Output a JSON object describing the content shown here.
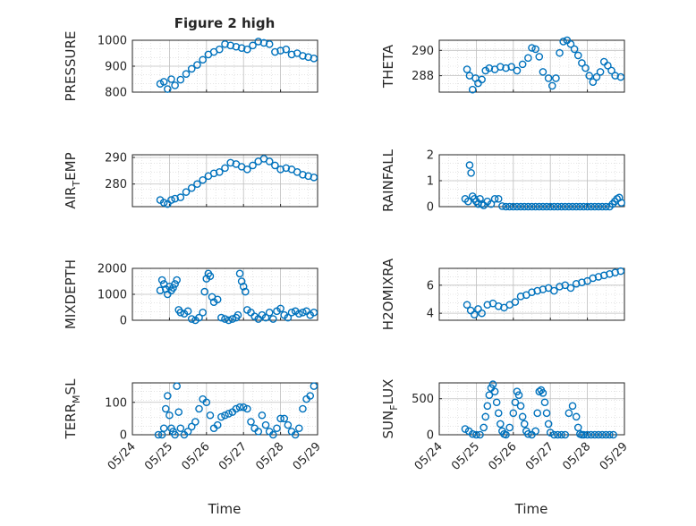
{
  "figure": {
    "title": "Figure 2 high",
    "xlabel": "Time"
  },
  "colors": {
    "series": "#0072bd",
    "axes": "#262626",
    "grid": "#bfbfbf"
  },
  "chart_data": [
    {
      "type": "scatter",
      "title": "Figure 2 high",
      "ylabel": {
        "text": "PRESSURE"
      },
      "ylim": [
        800,
        1000
      ],
      "yticks": [
        800,
        900,
        1000
      ],
      "xlim": [
        0,
        5
      ],
      "xticks": [],
      "grid": true,
      "x": [
        0.75,
        0.85,
        0.95,
        1.05,
        1.15,
        1.3,
        1.45,
        1.6,
        1.75,
        1.9,
        2.05,
        2.2,
        2.35,
        2.5,
        2.65,
        2.8,
        2.95,
        3.1,
        3.25,
        3.4,
        3.55,
        3.7,
        3.85,
        4.0,
        4.15,
        4.3,
        4.45,
        4.6,
        4.75,
        4.9
      ],
      "y": [
        832,
        840,
        812,
        850,
        826,
        848,
        870,
        890,
        905,
        925,
        945,
        955,
        965,
        985,
        980,
        975,
        970,
        965,
        980,
        995,
        990,
        985,
        955,
        960,
        965,
        945,
        950,
        940,
        935,
        930
      ]
    },
    {
      "type": "scatter",
      "ylabel": {
        "text": "THETA"
      },
      "ylim": [
        286.7,
        290.8
      ],
      "yticks": [
        288,
        290
      ],
      "xlim": [
        0,
        5
      ],
      "xticks": [],
      "grid": true,
      "x": [
        0.75,
        0.82,
        0.9,
        0.98,
        1.05,
        1.15,
        1.25,
        1.35,
        1.5,
        1.65,
        1.8,
        1.95,
        2.1,
        2.25,
        2.4,
        2.5,
        2.6,
        2.7,
        2.8,
        2.95,
        3.05,
        3.15,
        3.25,
        3.35,
        3.45,
        3.55,
        3.65,
        3.75,
        3.85,
        3.95,
        4.05,
        4.15,
        4.25,
        4.35,
        4.45,
        4.55,
        4.65,
        4.75,
        4.9
      ],
      "y": [
        288.5,
        288.0,
        286.9,
        287.8,
        287.4,
        287.7,
        288.4,
        288.6,
        288.5,
        288.7,
        288.6,
        288.7,
        288.4,
        288.9,
        289.4,
        290.2,
        290.1,
        289.5,
        288.3,
        287.8,
        287.2,
        287.8,
        289.8,
        290.7,
        290.8,
        290.5,
        290.1,
        289.6,
        289.0,
        288.6,
        288.0,
        287.5,
        287.9,
        288.3,
        289.1,
        288.8,
        288.4,
        288.0,
        287.9
      ]
    },
    {
      "type": "scatter",
      "ylabel": {
        "text": "AIR",
        "sub": "T",
        "after": "EMP"
      },
      "ylim": [
        271.5,
        291
      ],
      "yticks": [
        280,
        290
      ],
      "xlim": [
        0,
        5
      ],
      "xticks": [],
      "grid": true,
      "x": [
        0.75,
        0.85,
        0.95,
        1.05,
        1.15,
        1.3,
        1.45,
        1.6,
        1.75,
        1.9,
        2.05,
        2.2,
        2.35,
        2.5,
        2.65,
        2.8,
        2.95,
        3.1,
        3.25,
        3.4,
        3.55,
        3.7,
        3.85,
        4.0,
        4.15,
        4.3,
        4.45,
        4.6,
        4.75,
        4.9
      ],
      "y": [
        274,
        273,
        272.5,
        274,
        274.5,
        275,
        277,
        278.5,
        280,
        281.5,
        283,
        284,
        284.5,
        286,
        288,
        287.5,
        286.5,
        285.5,
        287,
        288.5,
        289.5,
        288.5,
        287,
        285.5,
        286,
        285.5,
        284.5,
        283.5,
        283,
        282.5
      ]
    },
    {
      "type": "scatter",
      "ylabel": {
        "text": "RAINFALL"
      },
      "ylim": [
        0,
        2
      ],
      "yticks": [
        0,
        1,
        2
      ],
      "xlim": [
        0,
        5
      ],
      "xticks": [],
      "grid": true,
      "x": [
        0.7,
        0.78,
        0.82,
        0.86,
        0.9,
        0.95,
        1.0,
        1.05,
        1.1,
        1.15,
        1.2,
        1.3,
        1.4,
        1.5,
        1.6,
        1.7,
        1.8,
        1.9,
        2.0,
        2.1,
        2.2,
        2.3,
        2.4,
        2.5,
        2.6,
        2.7,
        2.8,
        2.9,
        3.0,
        3.1,
        3.2,
        3.3,
        3.4,
        3.5,
        3.6,
        3.7,
        3.8,
        3.9,
        4.0,
        4.1,
        4.2,
        4.3,
        4.4,
        4.5,
        4.6,
        4.68,
        4.74,
        4.8,
        4.86,
        4.92
      ],
      "y": [
        0.3,
        0.2,
        1.6,
        1.3,
        0.4,
        0.3,
        0.2,
        0.1,
        0.3,
        0.1,
        0.05,
        0.2,
        0.1,
        0.3,
        0.3,
        0.02,
        0,
        0,
        0,
        0,
        0,
        0,
        0,
        0,
        0,
        0,
        0,
        0,
        0,
        0,
        0,
        0,
        0,
        0,
        0,
        0,
        0,
        0,
        0,
        0,
        0,
        0,
        0,
        0,
        0,
        0.1,
        0.2,
        0.3,
        0.35,
        0.15
      ]
    },
    {
      "type": "scatter",
      "ylabel": {
        "text": "MIXDEPTH"
      },
      "ylim": [
        0,
        2000
      ],
      "yticks": [
        0,
        1000,
        2000
      ],
      "xlim": [
        0,
        5
      ],
      "xticks": [],
      "grid": true,
      "x": [
        0.75,
        0.8,
        0.85,
        0.9,
        0.95,
        1.0,
        1.05,
        1.1,
        1.15,
        1.2,
        1.25,
        1.3,
        1.4,
        1.5,
        1.6,
        1.7,
        1.8,
        1.9,
        1.95,
        2.0,
        2.05,
        2.1,
        2.15,
        2.2,
        2.3,
        2.4,
        2.5,
        2.6,
        2.7,
        2.8,
        2.85,
        2.9,
        2.95,
        3.0,
        3.05,
        3.1,
        3.2,
        3.3,
        3.4,
        3.5,
        3.6,
        3.7,
        3.8,
        3.9,
        4.0,
        4.1,
        4.2,
        4.3,
        4.4,
        4.5,
        4.6,
        4.7,
        4.8,
        4.9
      ],
      "y": [
        1150,
        1550,
        1400,
        1200,
        1000,
        1300,
        1150,
        1250,
        1400,
        1550,
        400,
        300,
        250,
        350,
        50,
        0,
        100,
        300,
        1100,
        1600,
        1800,
        1700,
        900,
        700,
        800,
        100,
        50,
        0,
        50,
        100,
        200,
        1800,
        1500,
        1300,
        1100,
        400,
        300,
        150,
        50,
        200,
        100,
        300,
        50,
        350,
        450,
        200,
        100,
        300,
        350,
        250,
        300,
        350,
        200,
        300
      ]
    },
    {
      "type": "scatter",
      "ylabel": {
        "text": "H2OMIXRA"
      },
      "ylim": [
        3.5,
        7.2
      ],
      "yticks": [
        4,
        6
      ],
      "xlim": [
        0,
        5
      ],
      "xticks": [],
      "grid": true,
      "x": [
        0.75,
        0.85,
        0.95,
        1.05,
        1.15,
        1.3,
        1.45,
        1.6,
        1.75,
        1.9,
        2.05,
        2.2,
        2.35,
        2.5,
        2.65,
        2.8,
        2.95,
        3.1,
        3.25,
        3.4,
        3.55,
        3.7,
        3.85,
        4.0,
        4.15,
        4.3,
        4.45,
        4.6,
        4.75,
        4.9
      ],
      "y": [
        4.6,
        4.2,
        3.9,
        4.3,
        4.0,
        4.6,
        4.7,
        4.5,
        4.4,
        4.6,
        4.8,
        5.2,
        5.3,
        5.5,
        5.6,
        5.7,
        5.8,
        5.6,
        5.9,
        6.0,
        5.8,
        6.1,
        6.2,
        6.3,
        6.5,
        6.6,
        6.7,
        6.8,
        6.9,
        7.0
      ]
    },
    {
      "type": "scatter",
      "ylabel": {
        "text": "TERR",
        "sub": "M",
        "after": "SL"
      },
      "ylim": [
        0,
        160
      ],
      "yticks": [
        0,
        100
      ],
      "xlim": [
        0,
        5
      ],
      "xticks": [
        "05/24",
        "05/25",
        "05/26",
        "05/27",
        "05/28",
        "05/29"
      ],
      "grid": true,
      "x": [
        0.7,
        0.8,
        0.85,
        0.9,
        0.95,
        1.0,
        1.05,
        1.1,
        1.15,
        1.2,
        1.25,
        1.3,
        1.4,
        1.5,
        1.6,
        1.7,
        1.8,
        1.9,
        2.0,
        2.1,
        2.2,
        2.3,
        2.4,
        2.5,
        2.6,
        2.7,
        2.8,
        2.9,
        3.0,
        3.1,
        3.2,
        3.3,
        3.4,
        3.5,
        3.6,
        3.7,
        3.8,
        3.9,
        4.0,
        4.1,
        4.2,
        4.3,
        4.4,
        4.5,
        4.6,
        4.7,
        4.8,
        4.9
      ],
      "y": [
        0,
        0,
        20,
        80,
        120,
        60,
        20,
        10,
        0,
        150,
        70,
        20,
        0,
        10,
        25,
        40,
        80,
        110,
        100,
        60,
        20,
        30,
        55,
        60,
        65,
        70,
        80,
        85,
        85,
        80,
        40,
        20,
        10,
        60,
        30,
        10,
        0,
        20,
        50,
        50,
        30,
        10,
        0,
        20,
        80,
        110,
        120,
        150
      ]
    },
    {
      "type": "scatter",
      "ylabel": {
        "text": "SUN",
        "sub": "F",
        "after": "LUX"
      },
      "ylim": [
        0,
        720
      ],
      "yticks": [
        0,
        500
      ],
      "xlim": [
        0,
        5
      ],
      "xticks": [
        "05/24",
        "05/25",
        "05/26",
        "05/27",
        "05/28",
        "05/29"
      ],
      "grid": true,
      "x": [
        0.7,
        0.8,
        0.9,
        1.0,
        1.1,
        1.2,
        1.25,
        1.3,
        1.35,
        1.4,
        1.45,
        1.5,
        1.55,
        1.6,
        1.65,
        1.7,
        1.75,
        1.8,
        1.9,
        2.0,
        2.05,
        2.1,
        2.15,
        2.2,
        2.25,
        2.3,
        2.35,
        2.4,
        2.5,
        2.6,
        2.65,
        2.7,
        2.75,
        2.8,
        2.85,
        2.9,
        2.95,
        3.0,
        3.1,
        3.2,
        3.3,
        3.4,
        3.5,
        3.6,
        3.7,
        3.75,
        3.8,
        3.85,
        3.9,
        4.0,
        4.1,
        4.2,
        4.3,
        4.4,
        4.5,
        4.6,
        4.7
      ],
      "y": [
        80,
        50,
        10,
        0,
        0,
        100,
        250,
        400,
        550,
        650,
        700,
        600,
        450,
        300,
        150,
        50,
        10,
        0,
        100,
        300,
        450,
        600,
        550,
        400,
        250,
        150,
        50,
        10,
        0,
        50,
        300,
        600,
        620,
        580,
        450,
        300,
        150,
        30,
        0,
        0,
        0,
        0,
        300,
        400,
        250,
        100,
        10,
        0,
        0,
        0,
        0,
        0,
        0,
        0,
        0,
        0,
        0
      ]
    }
  ]
}
